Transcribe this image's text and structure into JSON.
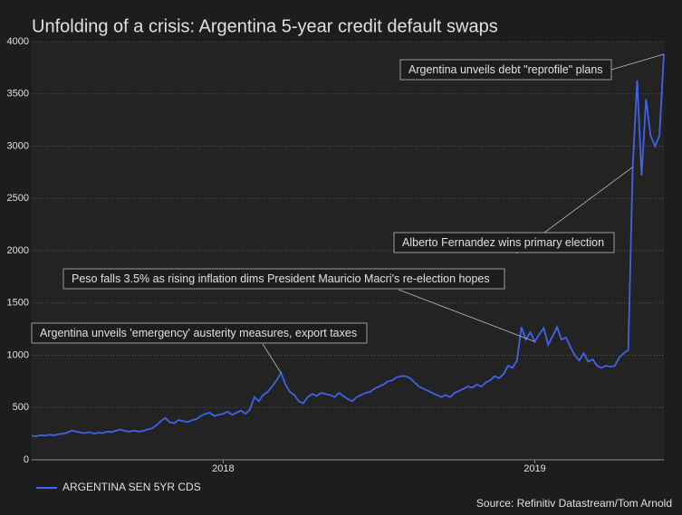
{
  "chart_data": {
    "type": "line",
    "title": "Unfolding of a crisis: Argentina 5-year credit default swaps",
    "source": "Source: Refinitiv Datastream/Tom Arnold",
    "categories": [
      null,
      null,
      null,
      null,
      null,
      null,
      null,
      null,
      null,
      null,
      null,
      null,
      null,
      null,
      null,
      null,
      null,
      null,
      null,
      null,
      null,
      null,
      null,
      null,
      null,
      null,
      null,
      null,
      null,
      null,
      null,
      null,
      null,
      null,
      null,
      null,
      null,
      null,
      null,
      null,
      null,
      null,
      null,
      "2018",
      null,
      null,
      null,
      null,
      null,
      null,
      null,
      null,
      null,
      null,
      null,
      null,
      null,
      null,
      null,
      null,
      null,
      null,
      null,
      null,
      null,
      null,
      null,
      null,
      null,
      null,
      null,
      null,
      null,
      null,
      null,
      null,
      null,
      null,
      null,
      null,
      null,
      null,
      null,
      null,
      null,
      null,
      null,
      null,
      null,
      null,
      null,
      null,
      null,
      null,
      null,
      null,
      null,
      null,
      null,
      null,
      null,
      null,
      null,
      null,
      null,
      null,
      null,
      null,
      null,
      null,
      null,
      null,
      null,
      "2019",
      null,
      null,
      null,
      null,
      null,
      null,
      null,
      null,
      null,
      null,
      null,
      null,
      null,
      null,
      null,
      null,
      null,
      null,
      null,
      null,
      null,
      null,
      null,
      null,
      null,
      null,
      null,
      null,
      null
    ],
    "series": [
      {
        "name": "ARGENTINA SEN 5YR CDS",
        "color": "#3f63e6",
        "values": [
          230,
          225,
          235,
          230,
          240,
          235,
          245,
          250,
          260,
          280,
          270,
          260,
          255,
          265,
          250,
          260,
          255,
          270,
          265,
          280,
          290,
          275,
          270,
          280,
          270,
          275,
          290,
          300,
          330,
          370,
          400,
          360,
          350,
          380,
          370,
          360,
          380,
          390,
          420,
          440,
          450,
          420,
          430,
          440,
          460,
          430,
          450,
          470,
          440,
          480,
          600,
          560,
          620,
          650,
          700,
          760,
          830,
          720,
          650,
          620,
          560,
          540,
          600,
          630,
          610,
          640,
          630,
          620,
          600,
          640,
          610,
          580,
          560,
          600,
          620,
          640,
          650,
          680,
          700,
          720,
          750,
          760,
          790,
          800,
          800,
          780,
          740,
          700,
          680,
          660,
          640,
          620,
          600,
          620,
          600,
          640,
          660,
          680,
          700,
          690,
          720,
          700,
          740,
          760,
          800,
          780,
          820,
          900,
          880,
          950,
          1270,
          1150,
          1220,
          1130,
          1200,
          1260,
          1100,
          1180,
          1270,
          1150,
          1170,
          1080,
          1000,
          950,
          1020,
          940,
          960,
          900,
          880,
          900,
          890,
          900,
          980,
          1020,
          1050,
          2800,
          3630,
          2720,
          3450,
          3100,
          3000,
          3100,
          3880
        ]
      }
    ],
    "ylim": [
      0,
      4000
    ],
    "yticks": [
      0,
      500,
      1000,
      1500,
      2000,
      2500,
      3000,
      3500,
      4000
    ],
    "grid": true,
    "annotations": [
      "Argentina unveils debt \"reprofile\" plans",
      "Alberto Fernandez wins primary election",
      "Peso falls 3.5% as rising inflation dims President Mauricio Macri's re-election hopes",
      "Argentina unveils 'emergency' austerity measures, export taxes"
    ]
  }
}
